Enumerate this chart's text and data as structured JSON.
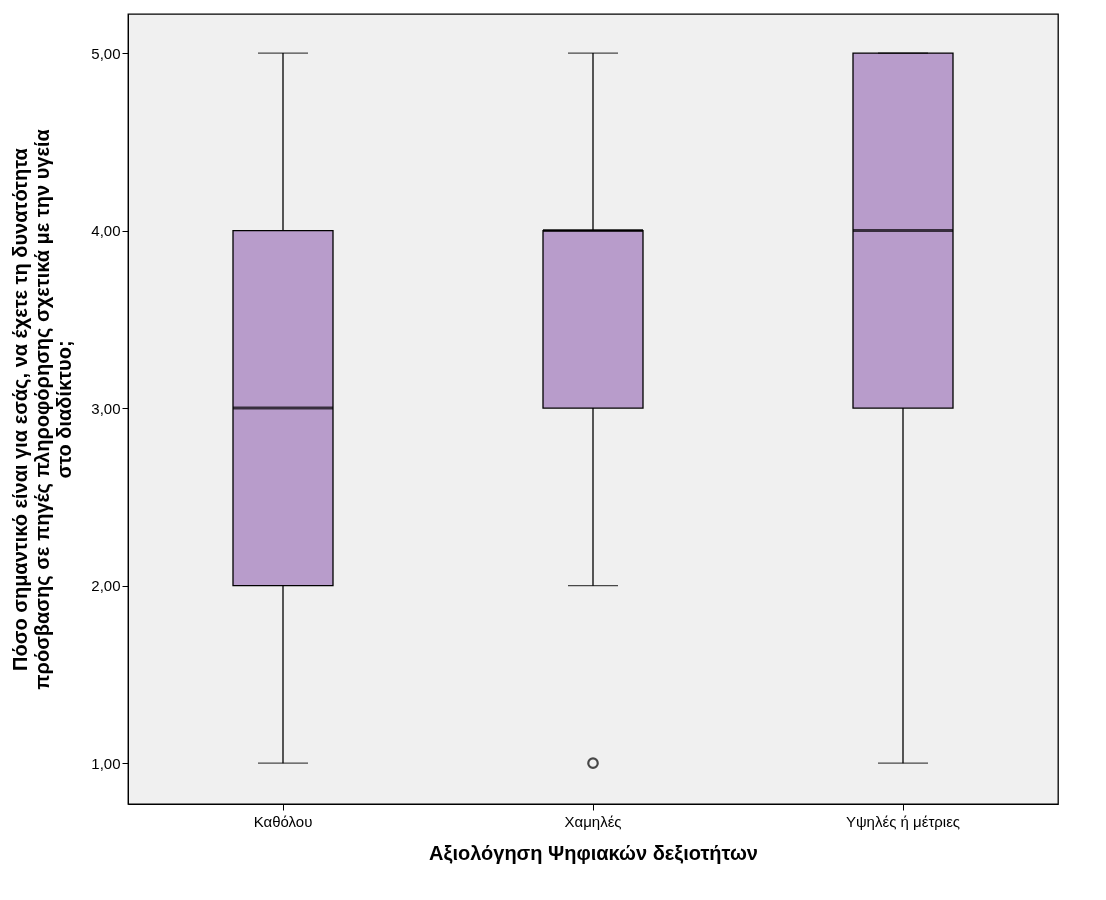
{
  "chart_data": {
    "type": "box",
    "xlabel": "Αξιολόγηση Ψηφιακών δεξιοτήτων",
    "ylabel": "Πόσο σημαντικό είναι για εσάς, να έχετε τη δυνατότητα πρόσβασης σε πηγές πληροφόρησης σχετικά με την υγεία στο διαδίκτυο;",
    "categories": [
      "Καθόλου",
      "Χαμηλές",
      "Υψηλές ή μέτριες"
    ],
    "color": "#b89ccb",
    "boxes": [
      {
        "low": 1,
        "q1": 2,
        "median": 3,
        "q3": 4,
        "high": 5
      },
      {
        "low": 2,
        "q1": 3,
        "median": 4,
        "q3": 4,
        "high": 5,
        "outliers": [
          1
        ]
      },
      {
        "low": 1,
        "q1": 3,
        "median": 4,
        "q3": 5,
        "high": 5
      }
    ],
    "ylim": [
      0.77,
      5.22
    ],
    "yticks": [
      {
        "value": 1,
        "label": "1,00"
      },
      {
        "value": 2,
        "label": "2,00"
      },
      {
        "value": 3,
        "label": "3,00"
      },
      {
        "value": 4,
        "label": "4,00"
      },
      {
        "value": 5,
        "label": "5,00"
      }
    ]
  }
}
